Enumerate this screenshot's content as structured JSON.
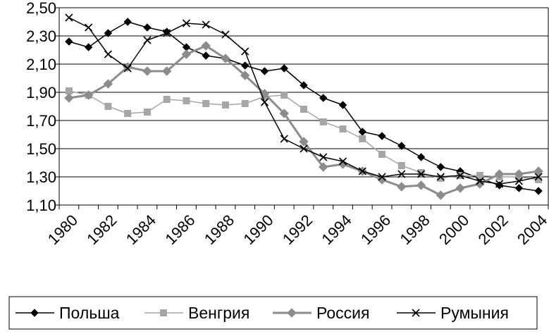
{
  "chart_data": {
    "type": "line",
    "title": "",
    "xlabel": "",
    "ylabel": "",
    "x": [
      1980,
      1981,
      1982,
      1983,
      1984,
      1985,
      1986,
      1987,
      1988,
      1989,
      1990,
      1991,
      1992,
      1993,
      1994,
      1995,
      1996,
      1997,
      1998,
      1999,
      2000,
      2001,
      2002,
      2003,
      2004
    ],
    "x_tick_labels": [
      "1980",
      "1982",
      "1984",
      "1986",
      "1988",
      "1990",
      "1992",
      "1994",
      "1996",
      "1998",
      "2000",
      "2002",
      "2004"
    ],
    "y_tick_labels": [
      "2,50",
      "2,30",
      "2,10",
      "1,90",
      "1,70",
      "1,50",
      "1,30",
      "1,10"
    ],
    "ylim": [
      1.1,
      2.5
    ],
    "grid": "horizontal",
    "legend_position": "bottom",
    "series": [
      {
        "name": "Польша",
        "color": "#000000",
        "marker": "diamond",
        "line_width": 1.5,
        "values": [
          2.26,
          2.22,
          2.32,
          2.4,
          2.36,
          2.33,
          2.22,
          2.16,
          2.14,
          2.09,
          2.05,
          2.07,
          1.95,
          1.86,
          1.81,
          1.62,
          1.59,
          1.52,
          1.44,
          1.37,
          1.34,
          1.29,
          1.24,
          1.22,
          1.2
        ]
      },
      {
        "name": "Венгрия",
        "color": "#a6a6a6",
        "marker": "square",
        "line_width": 1.5,
        "values": [
          1.91,
          1.88,
          1.8,
          1.75,
          1.76,
          1.85,
          1.84,
          1.82,
          1.81,
          1.82,
          1.87,
          1.88,
          1.78,
          1.69,
          1.64,
          1.57,
          1.46,
          1.38,
          1.33,
          1.29,
          1.31,
          1.31,
          1.3,
          1.3,
          1.28
        ]
      },
      {
        "name": "Россия",
        "color": "#8c8c8c",
        "marker": "diamond",
        "line_width": 3,
        "values": [
          1.86,
          1.88,
          1.96,
          2.08,
          2.05,
          2.05,
          2.17,
          2.23,
          2.14,
          2.02,
          1.89,
          1.75,
          1.55,
          1.37,
          1.39,
          1.34,
          1.28,
          1.23,
          1.24,
          1.17,
          1.22,
          1.25,
          1.32,
          1.32,
          1.34
        ]
      },
      {
        "name": "Румыния",
        "color": "#000000",
        "marker": "x",
        "line_width": 1.5,
        "values": [
          2.43,
          2.36,
          2.17,
          2.07,
          2.27,
          2.32,
          2.39,
          2.38,
          2.31,
          2.19,
          1.83,
          1.57,
          1.5,
          1.44,
          1.41,
          1.34,
          1.3,
          1.32,
          1.32,
          1.3,
          1.31,
          1.27,
          1.25,
          1.27,
          1.3
        ]
      }
    ]
  }
}
